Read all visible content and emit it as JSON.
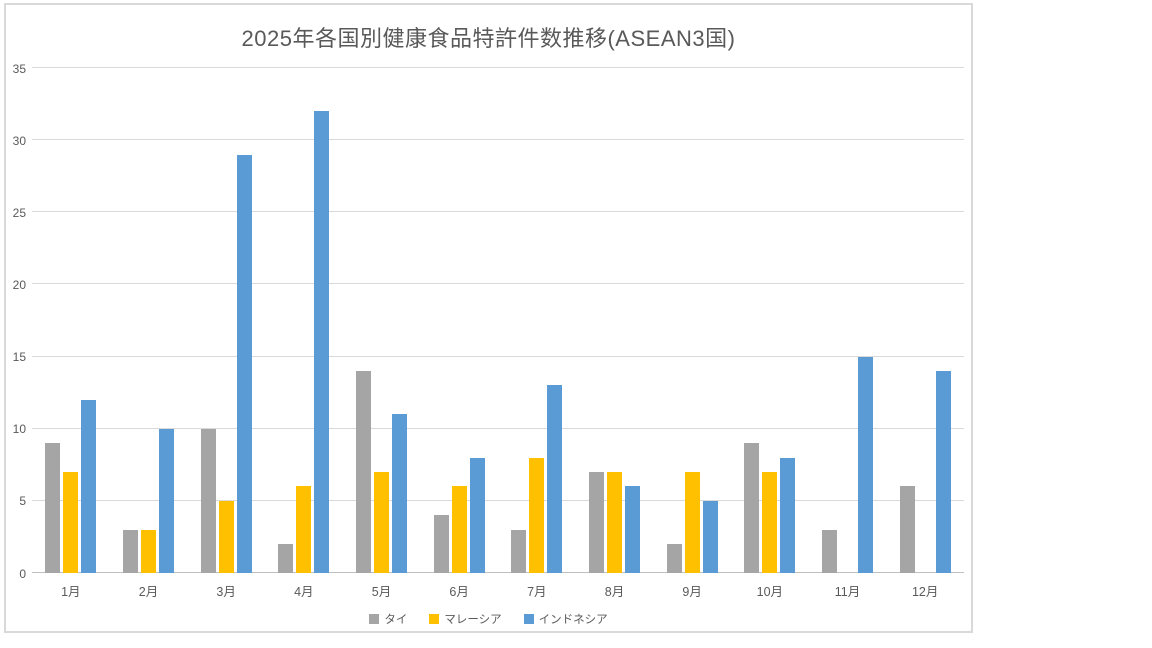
{
  "chart_data": {
    "type": "bar",
    "title": "2025年各国別健康食品特許件数推移(ASEAN3国)",
    "categories": [
      "1月",
      "2月",
      "3月",
      "4月",
      "5月",
      "6月",
      "7月",
      "8月",
      "9月",
      "10月",
      "11月",
      "12月"
    ],
    "series": [
      {
        "name": "タイ",
        "color": "#A5A5A5",
        "values": [
          9,
          3,
          10,
          2,
          14,
          4,
          3,
          7,
          2,
          9,
          3,
          6
        ]
      },
      {
        "name": "マレーシア",
        "color": "#FFC000",
        "values": [
          7,
          3,
          5,
          6,
          7,
          6,
          8,
          7,
          7,
          7,
          0,
          0
        ]
      },
      {
        "name": "インドネシア",
        "color": "#5B9BD5",
        "values": [
          12,
          10,
          29,
          32,
          11,
          8,
          13,
          6,
          5,
          8,
          15,
          14
        ]
      }
    ],
    "xlabel": "",
    "ylabel": "",
    "ylim": [
      0,
      35
    ],
    "yticks": [
      0,
      5,
      10,
      15,
      20,
      25,
      30,
      35
    ],
    "grid": true,
    "legend_position": "bottom"
  },
  "colors": {
    "grid": "#d9d9d9",
    "axis": "#bfbfbf",
    "text": "#595959",
    "frame_border": "#d9d9d9",
    "background": "#ffffff"
  }
}
